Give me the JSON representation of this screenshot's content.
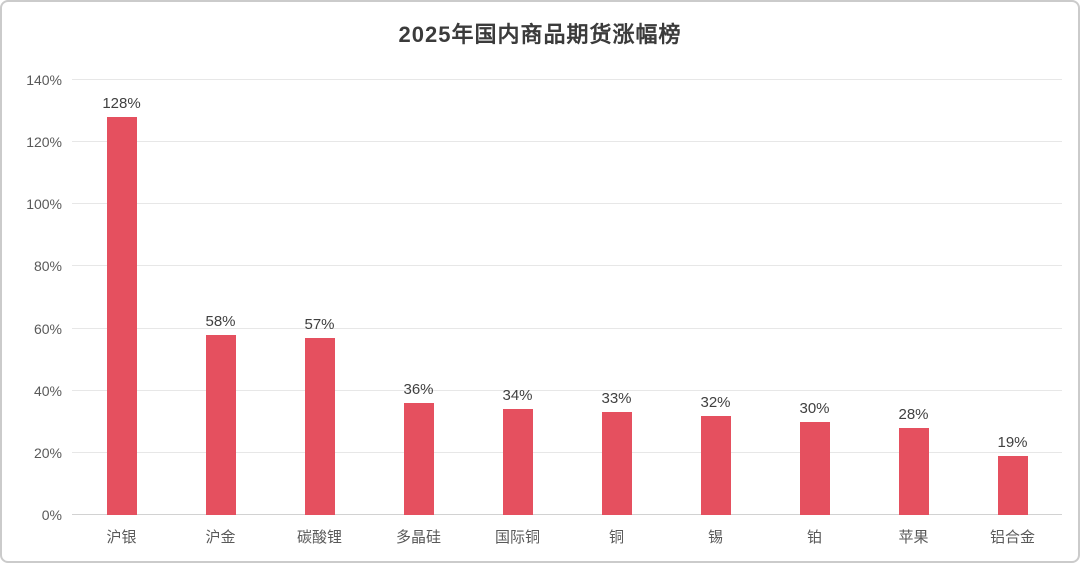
{
  "chart_data": {
    "type": "bar",
    "title": "2025年国内商品期货涨幅榜",
    "categories": [
      "沪银",
      "沪金",
      "碳酸锂",
      "多晶硅",
      "国际铜",
      "铜",
      "锡",
      "铂",
      "苹果",
      "铝合金"
    ],
    "values": [
      128,
      58,
      57,
      36,
      34,
      33,
      32,
      30,
      28,
      19
    ],
    "data_labels": [
      "128%",
      "58%",
      "57%",
      "36%",
      "34%",
      "33%",
      "32%",
      "30%",
      "28%",
      "19%"
    ],
    "y_ticks": [
      "0%",
      "20%",
      "40%",
      "60%",
      "80%",
      "100%",
      "120%",
      "140%"
    ],
    "ylim": [
      0,
      140
    ],
    "y_tick_step": 20,
    "xlabel": "",
    "ylabel": "",
    "grid": "horizontal",
    "legend": "none",
    "colors": {
      "bar": "#e5505f",
      "gridline": "#e7e7e7",
      "axis_line": "#d2d2d2",
      "title_text": "#3b3b3b",
      "tick_text": "#595959",
      "value_label_text": "#404040"
    }
  }
}
